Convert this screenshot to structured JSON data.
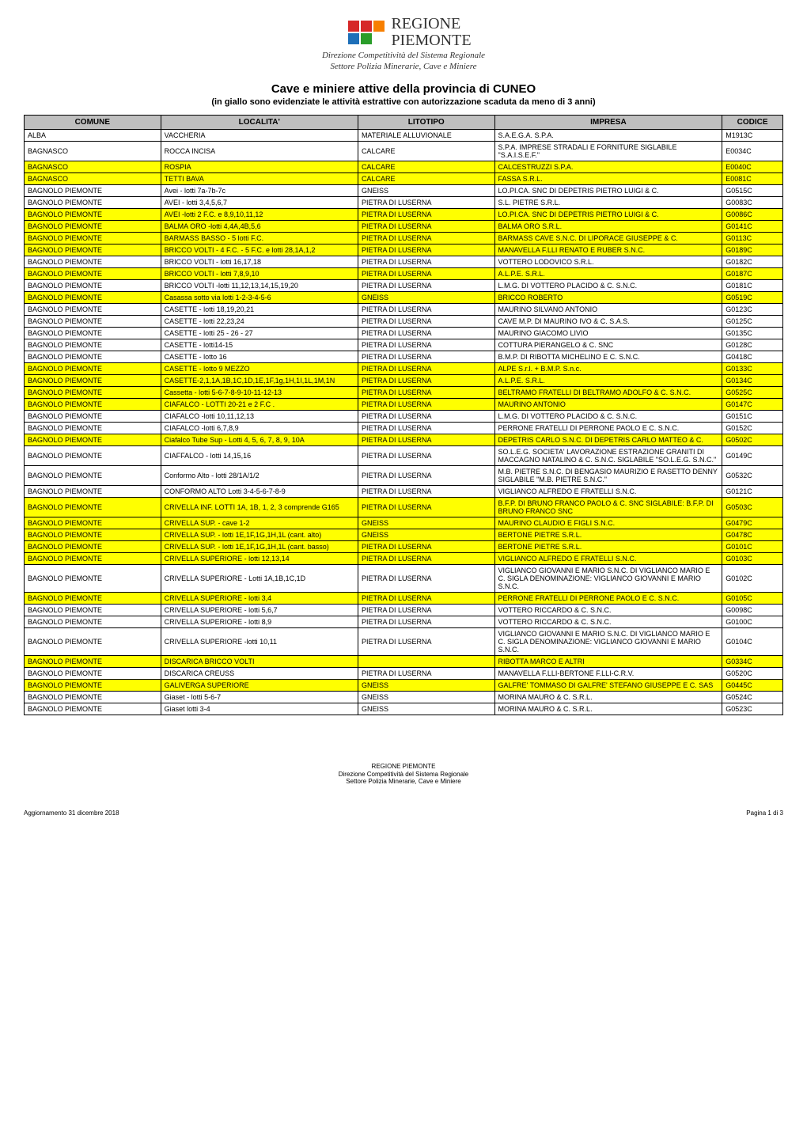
{
  "logo": {
    "line1": "REGIONE",
    "line2": "PIEMONTE",
    "grid": [
      [
        "empty",
        "red",
        "red",
        "orange"
      ],
      [
        "empty",
        "blue",
        "green",
        "empty"
      ]
    ]
  },
  "subhead": {
    "line1": "Direzione Competitività del Sistema Regionale",
    "line2": "Settore Polizia Minerarie, Cave e Miniere"
  },
  "title": "Cave e miniere attive della provincia di CUNEO",
  "subtitle": "(in giallo sono evidenziate le attività estrattive con autorizzazione scaduta da meno di 3 anni)",
  "columns": [
    "COMUNE",
    "LOCALITA'",
    "LITOTIPO",
    "IMPRESA",
    "CODICE"
  ],
  "column_classes": [
    "col-comune",
    "col-localita",
    "col-litotipo",
    "col-impresa",
    "col-codice"
  ],
  "style": {
    "highlight_bg": "#ffff00",
    "header_bg": "#bfbfbf",
    "border_color": "#000000",
    "font_size_pt": 9,
    "header_font_size_pt": 10
  },
  "rows": [
    {
      "hl": false,
      "c": [
        "ALBA",
        "VACCHERIA",
        "MATERIALE ALLUVIONALE",
        "S.A.E.G.A. S.P.A.",
        "M1913C"
      ]
    },
    {
      "hl": false,
      "c": [
        "BAGNASCO",
        "ROCCA INCISA",
        "CALCARE",
        "S.P.A. IMPRESE STRADALI E FORNITURE          SIGLABILE \"S.A.I.S.E.F.\"",
        "E0034C"
      ]
    },
    {
      "hl": true,
      "c": [
        "BAGNASCO",
        "ROSPIA",
        "CALCARE",
        "CALCESTRUZZI S.P.A.",
        "E0040C"
      ]
    },
    {
      "hl": true,
      "c": [
        "BAGNASCO",
        "TETTI BAVA",
        "CALCARE",
        "FASSA S.R.L.",
        "E0081C"
      ]
    },
    {
      "hl": false,
      "c": [
        "BAGNOLO PIEMONTE",
        "Avei  - lotti 7a-7b-7c",
        "GNEISS",
        "LO.PI.CA. SNC DI DEPETRIS PIETRO LUIGI & C.",
        "G0515C"
      ]
    },
    {
      "hl": false,
      "c": [
        "BAGNOLO PIEMONTE",
        "AVEI - lotti 3,4,5,6,7",
        "PIETRA DI LUSERNA",
        "S.L. PIETRE S.R.L.",
        "G0083C"
      ]
    },
    {
      "hl": true,
      "c": [
        "BAGNOLO PIEMONTE",
        "AVEI -lotti 2 F.C. e 8,9,10,11,12",
        "PIETRA DI LUSERNA",
        "LO.PI.CA. SNC DI DEPETRIS PIETRO LUIGI & C.",
        "G0086C"
      ]
    },
    {
      "hl": true,
      "c": [
        "BAGNOLO PIEMONTE",
        "BALMA ORO -lotti 4,4A,4B,5,6",
        "PIETRA DI LUSERNA",
        "BALMA ORO S.R.L.",
        "G0141C"
      ]
    },
    {
      "hl": true,
      "c": [
        "BAGNOLO PIEMONTE",
        "BARMASS BASSO - 5 lotti F.C.",
        "PIETRA DI LUSERNA",
        "BARMASS CAVE S.N.C. DI LIPORACE GIUSEPPE & C.",
        "G0113C"
      ]
    },
    {
      "hl": true,
      "c": [
        "BAGNOLO PIEMONTE",
        "BRICCO VOLTI - 4 F.C. - 5 F.C. e lotti 28,1A,1,2",
        "PIETRA DI LUSERNA",
        "MANAVELLA F.LLI RENATO E RUBER S.N.C.",
        "G0189C"
      ]
    },
    {
      "hl": false,
      "c": [
        "BAGNOLO PIEMONTE",
        "BRICCO VOLTI - lotti 16,17,18",
        "PIETRA DI LUSERNA",
        "VOTTERO LODOVICO S.R.L.",
        "G0182C"
      ]
    },
    {
      "hl": true,
      "c": [
        "BAGNOLO PIEMONTE",
        "BRICCO VOLTI - lotti 7,8,9,10",
        "PIETRA DI LUSERNA",
        "A.L.P.E. S.R.L.",
        "G0187C"
      ]
    },
    {
      "hl": false,
      "c": [
        "BAGNOLO PIEMONTE",
        "BRICCO VOLTI -lotti 11,12,13,14,15,19,20",
        "PIETRA DI LUSERNA",
        "L.M.G. DI VOTTERO PLACIDO & C. S.N.C.",
        "G0181C"
      ]
    },
    {
      "hl": true,
      "c": [
        "BAGNOLO PIEMONTE",
        "Casassa sotto via lotti 1-2-3-4-5-6",
        "GNEISS",
        "BRICCO ROBERTO",
        "G0519C"
      ]
    },
    {
      "hl": false,
      "c": [
        "BAGNOLO PIEMONTE",
        "CASETTE - lotti 18,19,20,21",
        "PIETRA DI LUSERNA",
        "MAURINO SILVANO ANTONIO",
        "G0123C"
      ]
    },
    {
      "hl": false,
      "c": [
        "BAGNOLO PIEMONTE",
        "CASETTE - lotti 22,23,24",
        "PIETRA DI LUSERNA",
        "CAVE M.P. DI MAURINO IVO & C. S.A.S.",
        "G0125C"
      ]
    },
    {
      "hl": false,
      "c": [
        "BAGNOLO PIEMONTE",
        "CASETTE - lotti 25 - 26 - 27",
        "PIETRA DI LUSERNA",
        "MAURINO GIACOMO LIVIO",
        "G0135C"
      ]
    },
    {
      "hl": false,
      "c": [
        "BAGNOLO PIEMONTE",
        "CASETTE - lotti14-15",
        "PIETRA DI LUSERNA",
        "COTTURA PIERANGELO & C. SNC",
        "G0128C"
      ]
    },
    {
      "hl": false,
      "c": [
        "BAGNOLO PIEMONTE",
        "CASETTE - lotto 16",
        "PIETRA DI LUSERNA",
        "B.M.P. DI RIBOTTA MICHELINO E C. S.N.C.",
        "G0418C"
      ]
    },
    {
      "hl": true,
      "c": [
        "BAGNOLO PIEMONTE",
        "CASETTE - lotto 9 MEZZO",
        "PIETRA DI LUSERNA",
        "ALPE S.r.l. + B.M.P. S.n.c.",
        "G0133C"
      ]
    },
    {
      "hl": true,
      "c": [
        "BAGNOLO PIEMONTE",
        "CASETTE-2,1,1A,1B,1C,1D,1E,1F,1g,1H,1I,1L,1M,1N",
        "PIETRA DI LUSERNA",
        "A.L.P.E. S.R.L.",
        "G0134C"
      ]
    },
    {
      "hl": true,
      "c": [
        "BAGNOLO PIEMONTE",
        "Cassetta - lotti 5-6-7-8-9-10-11-12-13",
        "PIETRA DI LUSERNA",
        "BELTRAMO FRATELLI DI BELTRAMO ADOLFO & C. S.N.C.",
        "G0525C"
      ]
    },
    {
      "hl": true,
      "c": [
        "BAGNOLO PIEMONTE",
        "CIAFALCO - LOTTI 20-21  e 2 F.C .",
        "PIETRA DI LUSERNA",
        "MAURINO ANTONIO",
        "G0147C"
      ]
    },
    {
      "hl": false,
      "c": [
        "BAGNOLO PIEMONTE",
        "CIAFALCO -lotti 10,11,12,13",
        "PIETRA DI LUSERNA",
        "L.M.G. DI VOTTERO PLACIDO & C. S.N.C.",
        "G0151C"
      ]
    },
    {
      "hl": false,
      "c": [
        "BAGNOLO PIEMONTE",
        "CIAFALCO -lotti 6,7,8,9",
        "PIETRA DI LUSERNA",
        "PERRONE FRATELLI DI PERRONE PAOLO E C. S.N.C.",
        "G0152C"
      ]
    },
    {
      "hl": true,
      "c": [
        "BAGNOLO PIEMONTE",
        "Ciafalco Tube Sup - Lotti 4, 5, 6, 7, 8, 9, 10A",
        "PIETRA DI LUSERNA",
        "DEPETRIS CARLO S.N.C. DI DEPETRIS CARLO MATTEO & C.",
        "G0502C"
      ]
    },
    {
      "hl": false,
      "c": [
        "BAGNOLO PIEMONTE",
        "CIAFFALCO - lotti 14,15,16",
        "PIETRA DI LUSERNA",
        "SO.L.E.G. SOCIETA' LAVORAZIONE ESTRAZIONE GRANITI          DI MACCAGNO NATALINO & C. S.N.C. SIGLABILE \"SO.L.E.G. S.N.C.\"",
        "G0149C"
      ]
    },
    {
      "hl": false,
      "c": [
        "BAGNOLO PIEMONTE",
        "Conformo Alto - lotti 28/1A/1/2",
        "PIETRA DI LUSERNA",
        "M.B. PIETRE S.N.C. DI BENGASIO MAURIZIO E RASETTO DENNY SIGLABILE \"M.B. PIETRE S.N.C.\"",
        "G0532C"
      ]
    },
    {
      "hl": false,
      "c": [
        "BAGNOLO PIEMONTE",
        "CONFORMO ALTO Lotti 3-4-5-6-7-8-9",
        "PIETRA DI LUSERNA",
        "VIGLIANCO ALFREDO E FRATELLI S.N.C.",
        "G0121C"
      ]
    },
    {
      "hl": true,
      "c": [
        "BAGNOLO PIEMONTE",
        "CRIVELLA INF. LOTTI 1A, 1B, 1, 2, 3 comprende G165",
        "PIETRA DI LUSERNA",
        "B.F.P. DI BRUNO FRANCO PAOLO & C. SNC                         SIGLABILE: B.F.P. DI BRUNO FRANCO SNC",
        "G0503C"
      ]
    },
    {
      "hl": true,
      "c": [
        "BAGNOLO PIEMONTE",
        "CRIVELLA SUP. - cave 1-2",
        "GNEISS",
        "MAURINO CLAUDIO E FIGLI S.N.C.",
        "G0479C"
      ]
    },
    {
      "hl": true,
      "c": [
        "BAGNOLO PIEMONTE",
        "CRIVELLA SUP. - lotti 1E,1F,1G,1H,1L (cant. alto)",
        "GNEISS",
        "BERTONE PIETRE S.R.L.",
        "G0478C"
      ]
    },
    {
      "hl": true,
      "c": [
        "BAGNOLO PIEMONTE",
        "CRIVELLA SUP. - lotti 1E,1F,1G,1H,1L (cant. basso)",
        "PIETRA DI LUSERNA",
        "BERTONE PIETRE S.R.L.",
        "G0101C"
      ]
    },
    {
      "hl": true,
      "c": [
        "BAGNOLO PIEMONTE",
        "CRIVELLA SUPERIORE - lotti 12,13,14",
        "PIETRA DI LUSERNA",
        "VIGLIANCO ALFREDO E FRATELLI S.N.C.",
        "G0103C"
      ]
    },
    {
      "hl": false,
      "c": [
        "BAGNOLO PIEMONTE",
        "CRIVELLA SUPERIORE - Lotti 1A,1B,1C,1D",
        "PIETRA DI LUSERNA",
        "VIGLIANCO GIOVANNI E MARIO S.N.C. DI VIGLIANCO MARIO E C.       SIGLA DENOMINAZIONE: VIGLIANCO GIOVANNI E MARIO S.N.C.",
        "G0102C"
      ]
    },
    {
      "hl": true,
      "c": [
        "BAGNOLO PIEMONTE",
        "CRIVELLA SUPERIORE - lotti 3,4",
        "PIETRA DI LUSERNA",
        "PERRONE FRATELLI DI PERRONE PAOLO E C. S.N.C.",
        "G0105C"
      ]
    },
    {
      "hl": false,
      "c": [
        "BAGNOLO PIEMONTE",
        "CRIVELLA SUPERIORE - lotti 5,6,7",
        "PIETRA DI LUSERNA",
        "VOTTERO RICCARDO & C. S.N.C.",
        "G0098C"
      ]
    },
    {
      "hl": false,
      "c": [
        "BAGNOLO PIEMONTE",
        "CRIVELLA SUPERIORE - lotti 8,9",
        "PIETRA DI LUSERNA",
        "VOTTERO RICCARDO & C. S.N.C.",
        "G0100C"
      ]
    },
    {
      "hl": false,
      "c": [
        "BAGNOLO PIEMONTE",
        "CRIVELLA SUPERIORE -lotti 10,11",
        "PIETRA DI LUSERNA",
        "VIGLIANCO GIOVANNI E MARIO S.N.C. DI VIGLIANCO MARIO E C.       SIGLA DENOMINAZIONE: VIGLIANCO GIOVANNI E MARIO S.N.C.",
        "G0104C"
      ]
    },
    {
      "hl": true,
      "c": [
        "BAGNOLO PIEMONTE",
        "DISCARICA BRICCO VOLTI",
        "",
        "RIBOTTA MARCO E ALTRI",
        "G0334C"
      ]
    },
    {
      "hl": false,
      "c": [
        "BAGNOLO PIEMONTE",
        "DISCARICA CREUSS",
        "PIETRA DI LUSERNA",
        "MANAVELLA F.LLI-BERTONE F.LLI-C.R.V.",
        "G0520C"
      ]
    },
    {
      "hl": true,
      "c": [
        "BAGNOLO PIEMONTE",
        "GALIVERGA SUPERIORE",
        "GNEISS",
        "GALFRE' TOMMASO DI GALFRE' STEFANO GIUSEPPE E C. SAS",
        "G0445C"
      ]
    },
    {
      "hl": false,
      "c": [
        "BAGNOLO PIEMONTE",
        "Giaset - lotti 5-6-7",
        "GNEISS",
        "MORINA MAURO & C. S.R.L.",
        "G0524C"
      ]
    },
    {
      "hl": false,
      "c": [
        "BAGNOLO PIEMONTE",
        "Giaset lotti 3-4",
        "GNEISS",
        "MORINA MAURO & C. S.R.L.",
        "G0523C"
      ]
    }
  ],
  "footer_center": {
    "line1": "REGIONE PIEMONTE",
    "line2": "Direzione Competitività del Sistema Regionale",
    "line3": "Settore Polizia Minerarie, Cave e Miniere"
  },
  "footer_left": "Aggiornamento 31 dicembre 2018",
  "footer_right": "Pagina 1 di 3"
}
